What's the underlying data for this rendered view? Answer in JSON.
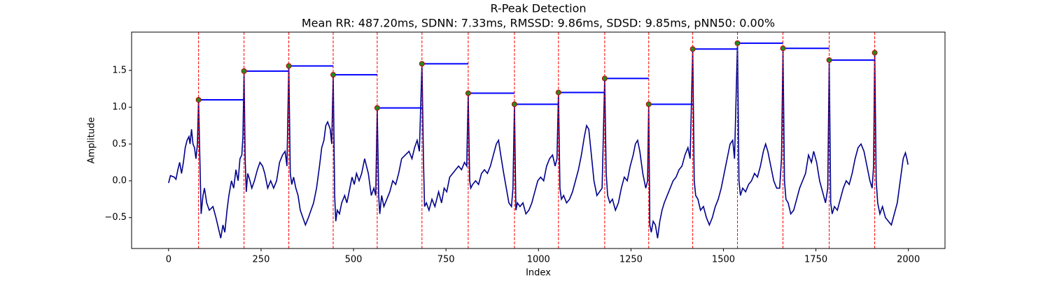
{
  "chart_data": {
    "type": "line",
    "title": "R-Peak Detection",
    "subtitle": "Mean RR: 487.20ms, SDNN: 7.33ms, RMSSD: 9.86ms, SDSD: 9.85ms, pNN50: 0.00%",
    "xlabel": "Index",
    "ylabel": "Amplitude",
    "xlim": [
      -100,
      2099
    ],
    "ylim": [
      -0.92,
      2.02
    ],
    "xticks": [
      0,
      250,
      500,
      750,
      1000,
      1250,
      1500,
      1750,
      2000
    ],
    "yticks": [
      {
        "value": -0.5,
        "label": "−0.5"
      },
      {
        "value": 0,
        "label": "0.0"
      },
      0.5,
      {
        "value": 1,
        "label": "1.0"
      },
      1.5
    ],
    "color": "#00008b",
    "x": [
      0,
      5,
      15,
      20,
      25,
      30,
      35,
      40,
      45,
      50,
      55,
      58,
      62,
      66,
      70,
      74,
      78,
      81,
      85,
      88,
      93,
      97,
      103,
      110,
      120,
      128,
      135,
      141,
      147,
      152,
      158,
      163,
      170,
      176,
      182,
      188,
      193,
      198,
      201,
      204,
      207,
      210,
      214,
      220,
      225,
      232,
      240,
      247,
      254,
      260,
      268,
      276,
      284,
      292,
      300,
      308,
      315,
      320,
      325,
      329,
      333,
      338,
      344,
      350,
      356,
      363,
      370,
      378,
      385,
      392,
      400,
      408,
      414,
      420,
      425,
      430,
      437,
      441,
      445,
      449,
      452,
      456,
      462,
      468,
      476,
      482,
      490,
      496,
      502,
      508,
      515,
      522,
      530,
      535,
      540,
      548,
      555,
      560,
      564,
      568,
      571,
      576,
      582,
      590,
      598,
      606,
      614,
      622,
      630,
      640,
      650,
      658,
      665,
      672,
      678,
      685,
      689,
      692,
      697,
      704,
      712,
      720,
      730,
      738,
      745,
      752,
      760,
      768,
      776,
      784,
      792,
      800,
      806,
      810,
      814,
      817,
      822,
      830,
      838,
      846,
      854,
      862,
      870,
      878,
      886,
      892,
      898,
      906,
      913,
      920,
      927,
      931,
      935,
      939,
      943,
      950,
      958,
      966,
      974,
      982,
      990,
      998,
      1006,
      1014,
      1022,
      1030,
      1038,
      1045,
      1050,
      1054,
      1058,
      1062,
      1068,
      1076,
      1084,
      1092,
      1100,
      1108,
      1116,
      1124,
      1130,
      1136,
      1142,
      1150,
      1158,
      1165,
      1172,
      1179,
      1183,
      1187,
      1193,
      1200,
      1208,
      1216,
      1224,
      1232,
      1240,
      1248,
      1256,
      1262,
      1268,
      1274,
      1282,
      1290,
      1295,
      1298,
      1301,
      1305,
      1310,
      1316,
      1322,
      1328,
      1334,
      1340,
      1348,
      1356,
      1364,
      1372,
      1380,
      1388,
      1396,
      1404,
      1410,
      1417,
      1421,
      1425,
      1431,
      1438,
      1446,
      1454,
      1462,
      1470,
      1478,
      1486,
      1494,
      1502,
      1510,
      1518,
      1525,
      1530,
      1538,
      1542,
      1546,
      1552,
      1560,
      1568,
      1576,
      1584,
      1592,
      1600,
      1608,
      1614,
      1620,
      1628,
      1636,
      1644,
      1652,
      1657,
      1661,
      1665,
      1669,
      1675,
      1682,
      1690,
      1698,
      1706,
      1714,
      1722,
      1730,
      1738,
      1744,
      1752,
      1760,
      1768,
      1776,
      1782,
      1786,
      1790,
      1794,
      1800,
      1808,
      1816,
      1824,
      1832,
      1840,
      1848,
      1856,
      1864,
      1872,
      1880,
      1888,
      1896,
      1902,
      1906,
      1909,
      1913,
      1917,
      1923,
      1930,
      1938,
      1946,
      1954,
      1962,
      1970,
      1978,
      1986,
      1992,
      1996,
      1999
    ],
    "values": [
      -0.03,
      0.07,
      0.05,
      0.02,
      0.15,
      0.25,
      0.1,
      0.25,
      0.45,
      0.55,
      0.6,
      0.5,
      0.7,
      0.5,
      0.45,
      0.3,
      0.5,
      1.1,
      0.2,
      -0.45,
      -0.2,
      -0.1,
      -0.3,
      -0.4,
      -0.35,
      -0.5,
      -0.65,
      -0.78,
      -0.6,
      -0.7,
      -0.4,
      -0.2,
      0.0,
      -0.1,
      0.15,
      0.0,
      0.3,
      0.35,
      0.6,
      1.49,
      0.3,
      -0.15,
      0.1,
      0.0,
      -0.1,
      0.0,
      0.15,
      0.25,
      0.2,
      0.1,
      -0.1,
      0.0,
      -0.1,
      0.0,
      0.25,
      0.35,
      0.4,
      0.2,
      1.56,
      0.1,
      -0.05,
      0.05,
      -0.1,
      -0.2,
      -0.4,
      -0.5,
      -0.6,
      -0.5,
      -0.4,
      -0.3,
      -0.1,
      0.2,
      0.45,
      0.55,
      0.75,
      0.8,
      0.7,
      0.5,
      1.44,
      -0.2,
      -0.55,
      -0.4,
      -0.45,
      -0.3,
      -0.2,
      -0.3,
      -0.1,
      0.05,
      -0.05,
      0.1,
      0.0,
      0.1,
      0.3,
      0.2,
      0.1,
      -0.2,
      -0.1,
      -0.2,
      0.99,
      -0.2,
      -0.45,
      -0.2,
      -0.35,
      -0.25,
      -0.15,
      0.0,
      -0.05,
      0.1,
      0.3,
      0.35,
      0.4,
      0.3,
      0.45,
      0.55,
      0.4,
      1.59,
      0.3,
      -0.35,
      -0.3,
      -0.4,
      -0.25,
      -0.35,
      -0.15,
      -0.3,
      -0.1,
      -0.15,
      0.05,
      0.1,
      0.15,
      0.2,
      0.15,
      0.25,
      0.2,
      1.19,
      0.0,
      -0.1,
      -0.05,
      0.0,
      -0.05,
      0.1,
      0.15,
      0.1,
      0.2,
      0.35,
      0.5,
      0.55,
      0.35,
      0.1,
      -0.1,
      -0.3,
      -0.35,
      -0.1,
      1.04,
      -0.4,
      -0.3,
      -0.35,
      -0.3,
      -0.45,
      -0.4,
      -0.3,
      -0.15,
      0.0,
      0.05,
      0.0,
      0.2,
      0.3,
      0.35,
      0.2,
      0.3,
      1.2,
      -0.1,
      -0.25,
      -0.2,
      -0.3,
      -0.25,
      -0.15,
      0.0,
      0.15,
      0.35,
      0.6,
      0.75,
      0.7,
      0.4,
      0.0,
      -0.2,
      -0.15,
      -0.1,
      1.39,
      0.1,
      -0.2,
      -0.3,
      -0.25,
      -0.4,
      -0.3,
      -0.1,
      0.05,
      0.0,
      0.2,
      0.35,
      0.5,
      0.55,
      0.4,
      0.1,
      -0.1,
      0.0,
      1.04,
      -0.6,
      -0.7,
      -0.55,
      -0.6,
      -0.78,
      -0.55,
      -0.4,
      -0.3,
      -0.2,
      -0.1,
      0.0,
      0.05,
      0.15,
      0.2,
      0.35,
      0.45,
      0.3,
      1.79,
      0.0,
      -0.2,
      -0.25,
      -0.4,
      -0.35,
      -0.5,
      -0.6,
      -0.5,
      -0.35,
      -0.25,
      -0.1,
      0.1,
      0.3,
      0.5,
      0.55,
      0.3,
      1.87,
      0.0,
      -0.2,
      -0.1,
      -0.15,
      -0.05,
      0.0,
      0.1,
      0.05,
      0.2,
      0.4,
      0.5,
      0.4,
      0.2,
      0.0,
      -0.1,
      -0.1,
      0.3,
      1.8,
      0.0,
      -0.25,
      -0.3,
      -0.45,
      -0.4,
      -0.25,
      -0.1,
      0.0,
      0.1,
      0.35,
      0.25,
      0.4,
      0.25,
      0.0,
      -0.15,
      -0.3,
      -0.1,
      1.64,
      -0.3,
      -0.45,
      -0.35,
      -0.4,
      -0.25,
      -0.1,
      0.0,
      -0.05,
      0.1,
      0.3,
      0.45,
      0.5,
      0.4,
      0.2,
      0.0,
      -0.1,
      0.2,
      1.74,
      0.0,
      -0.3,
      -0.45,
      -0.35,
      -0.5,
      -0.55,
      -0.6,
      -0.45,
      -0.3,
      0.0,
      0.3,
      0.38,
      0.3,
      0.22
    ],
    "peaks": {
      "x": [
        81,
        204,
        325,
        445,
        564,
        685,
        810,
        935,
        1054,
        1179,
        1298,
        1417,
        1538,
        1661,
        1786,
        1909
      ],
      "values": [
        1.1,
        1.49,
        1.56,
        1.44,
        0.99,
        1.59,
        1.19,
        1.04,
        1.2,
        1.39,
        1.04,
        1.79,
        1.87,
        1.8,
        1.64,
        1.74
      ],
      "color": "#228b22",
      "edge_color": "#cc0000"
    },
    "peak_line_color": "#ff0000",
    "interval_color": "#0000ff"
  }
}
